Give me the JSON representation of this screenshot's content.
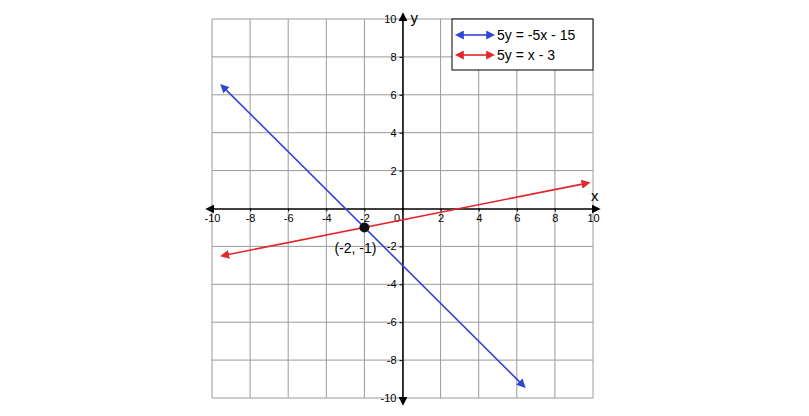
{
  "chart_data": {
    "type": "line",
    "x_label": "x",
    "y_label": "y",
    "xlim": [
      -10,
      10
    ],
    "ylim": [
      -10,
      10
    ],
    "xticks": [
      -10,
      -8,
      -6,
      -4,
      -2,
      0,
      2,
      4,
      6,
      8,
      10
    ],
    "yticks": [
      -10,
      -8,
      -6,
      -4,
      -2,
      2,
      4,
      6,
      8,
      10
    ],
    "grid": true,
    "legend": "upper right",
    "series": [
      {
        "name": "5y = -5x - 15",
        "color": "#3146d4",
        "x": [
          -9.3,
          6.2
        ],
        "values": [
          6.3,
          -9.2
        ]
      },
      {
        "name": "5y = x - 3",
        "color": "#e3262b",
        "x": [
          -9.2,
          9.5
        ],
        "values": [
          -2.44,
          1.3
        ]
      }
    ],
    "annotations": [
      {
        "text": "(-2, -1)",
        "x": -2,
        "y": -1
      }
    ]
  }
}
